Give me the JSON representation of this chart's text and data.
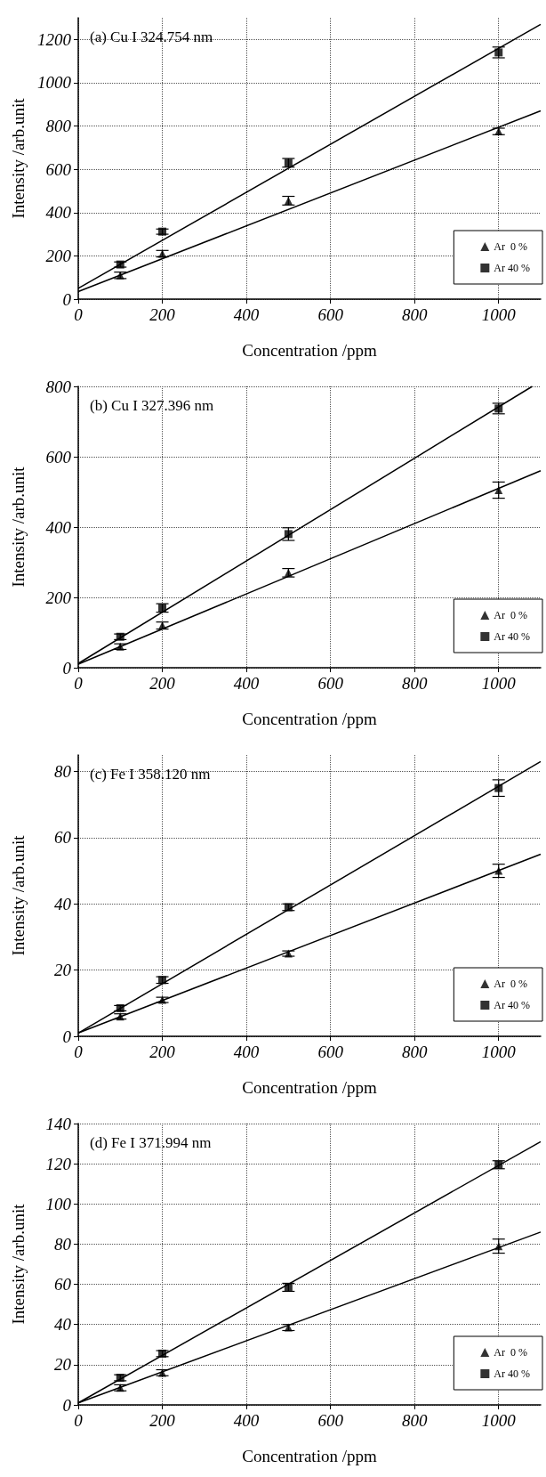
{
  "chart_data": [
    {
      "type": "scatter",
      "title": "(a) Cu I 324.754 nm",
      "xlabel": "Concentration /ppm",
      "ylabel": "Intensity /arb.unit",
      "xlim": [
        0,
        1100
      ],
      "ylim": [
        0,
        1300
      ],
      "xticks": [
        0,
        200,
        400,
        600,
        800,
        1000
      ],
      "yticks": [
        0,
        200,
        400,
        600,
        800,
        1000,
        1200
      ],
      "grid": true,
      "legend": "bottom right",
      "x": [
        100,
        200,
        500,
        1000
      ],
      "series": [
        {
          "name": "Ar  0 %",
          "marker": "triangle",
          "color": "#000000",
          "values": [
            110,
            210,
            455,
            775
          ],
          "errors": [
            15,
            15,
            20,
            15
          ]
        },
        {
          "name": "Ar 40 %",
          "marker": "square",
          "color": "#000000",
          "values": [
            160,
            312,
            630,
            1140
          ],
          "errors": [
            12,
            12,
            20,
            25
          ]
        },
        {
          "type": "line",
          "marker": "none",
          "color": "#000000",
          "x": [
            0,
            1100
          ],
          "values": [
            35,
            870
          ]
        },
        {
          "type": "line",
          "marker": "none",
          "color": "#000000",
          "x": [
            0,
            1100
          ],
          "values": [
            50,
            1270
          ]
        }
      ]
    },
    {
      "type": "scatter",
      "title": "(b) Cu I 327.396 nm",
      "xlabel": "Concentration /ppm",
      "ylabel": "Intensity /arb.unit",
      "xlim": [
        0,
        1100
      ],
      "ylim": [
        0,
        800
      ],
      "xticks": [
        0,
        200,
        400,
        600,
        800,
        1000
      ],
      "yticks": [
        0,
        200,
        400,
        600,
        800
      ],
      "grid": true,
      "legend": "bottom right",
      "x": [
        100,
        200,
        500,
        1000
      ],
      "series": [
        {
          "name": "Ar  0 %",
          "marker": "triangle",
          "color": "#000000",
          "values": [
            60,
            120,
            270,
            505
          ],
          "errors": [
            8,
            10,
            12,
            23
          ]
        },
        {
          "name": "Ar 40 %",
          "marker": "square",
          "color": "#000000",
          "values": [
            88,
            170,
            380,
            737
          ],
          "errors": [
            8,
            12,
            18,
            15
          ]
        },
        {
          "type": "line",
          "marker": "none",
          "color": "#000000",
          "x": [
            0,
            1100
          ],
          "values": [
            10,
            560
          ]
        },
        {
          "type": "line",
          "marker": "none",
          "color": "#000000",
          "x": [
            0,
            1080
          ],
          "values": [
            12,
            800
          ]
        }
      ]
    },
    {
      "type": "scatter",
      "title": "(c) Fe I 358.120 nm",
      "xlabel": "Concentration /ppm",
      "ylabel": "Intensity /arb.unit",
      "xlim": [
        0,
        1100
      ],
      "ylim": [
        0,
        85
      ],
      "xticks": [
        0,
        200,
        400,
        600,
        800,
        1000
      ],
      "yticks": [
        0,
        20,
        40,
        60,
        80
      ],
      "grid": true,
      "legend": "bottom right",
      "x": [
        100,
        200,
        500,
        1000
      ],
      "series": [
        {
          "name": "Ar  0 %",
          "marker": "triangle",
          "color": "#000000",
          "values": [
            6,
            11,
            25,
            50
          ],
          "errors": [
            0.8,
            0.8,
            0.8,
            2
          ]
        },
        {
          "name": "Ar 40 %",
          "marker": "square",
          "color": "#000000",
          "values": [
            8.5,
            17,
            39,
            75
          ],
          "errors": [
            0.8,
            1,
            1,
            2.5
          ]
        },
        {
          "type": "line",
          "marker": "none",
          "color": "#000000",
          "x": [
            0,
            1100
          ],
          "values": [
            1,
            55
          ]
        },
        {
          "type": "line",
          "marker": "none",
          "color": "#000000",
          "x": [
            0,
            1100
          ],
          "values": [
            1,
            83
          ]
        }
      ]
    },
    {
      "type": "scatter",
      "title": "(d) Fe I 371.994 nm",
      "xlabel": "Concentration /ppm",
      "ylabel": "Intensity /arb.unit",
      "xlim": [
        0,
        1100
      ],
      "ylim": [
        0,
        140
      ],
      "xticks": [
        0,
        200,
        400,
        600,
        800,
        1000
      ],
      "yticks": [
        0,
        20,
        40,
        60,
        80,
        100,
        120,
        140
      ],
      "grid": true,
      "legend": "bottom right",
      "x": [
        100,
        200,
        500,
        1000
      ],
      "series": [
        {
          "name": "Ar  0 %",
          "marker": "triangle",
          "color": "#000000",
          "values": [
            8.5,
            16,
            38.5,
            79
          ],
          "errors": [
            1.5,
            1.5,
            1.5,
            3.5
          ]
        },
        {
          "name": "Ar 40 %",
          "marker": "square",
          "color": "#000000",
          "values": [
            13.5,
            25.5,
            58.5,
            119.5
          ],
          "errors": [
            1.5,
            1.5,
            2,
            2
          ]
        },
        {
          "type": "line",
          "marker": "none",
          "color": "#000000",
          "x": [
            0,
            1100
          ],
          "values": [
            1,
            86
          ]
        },
        {
          "type": "line",
          "marker": "none",
          "color": "#000000",
          "x": [
            0,
            1100
          ],
          "values": [
            1,
            131
          ]
        }
      ]
    }
  ]
}
